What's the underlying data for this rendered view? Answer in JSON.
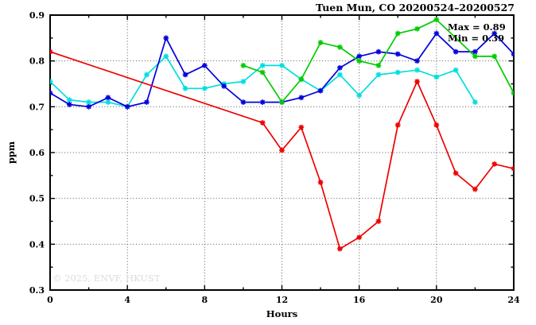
{
  "title": "Tuen Mun, CO 20200524–20200527",
  "watermark": "© 2025, ENVF, HKUST",
  "annotation": {
    "max_label": "Max = 0.89",
    "min_label": "Min = 0.39"
  },
  "chart_data": {
    "type": "line",
    "title": "Tuen Mun, CO 20200524–20200527",
    "xlabel": "Hours",
    "ylabel": "ppm",
    "xlim": [
      0,
      24
    ],
    "ylim": [
      0.3,
      0.9
    ],
    "x_major_ticks": [
      0,
      4,
      8,
      12,
      16,
      20,
      24
    ],
    "x_minor_ticks": [
      2,
      6,
      10,
      14,
      18,
      22
    ],
    "y_major_ticks": [
      0.3,
      0.4,
      0.5,
      0.6,
      0.7,
      0.8,
      0.9
    ],
    "y_minor_ticks": [
      0.35,
      0.45,
      0.55,
      0.65,
      0.75,
      0.85
    ],
    "grid": "dotted-at-major-ticks",
    "grid_color": "#555555",
    "legend": "none",
    "marker": "asterisk",
    "annotations": [
      "Max = 0.89",
      "Min = 0.39"
    ],
    "note": "points are [hour, ppm, marker?]; third element 0 = line passes through but no marker drawn (missing sample interpolated)",
    "series": [
      {
        "name": "series-cyan",
        "color": "#00dede",
        "points": [
          [
            0,
            0.755
          ],
          [
            1,
            0.715
          ],
          [
            2,
            0.71
          ],
          [
            3,
            0.71
          ],
          [
            4,
            0.7
          ],
          [
            5,
            0.77
          ],
          [
            6,
            0.81
          ],
          [
            7,
            0.74
          ],
          [
            8,
            0.74
          ],
          [
            9,
            0.75
          ],
          [
            10,
            0.755
          ],
          [
            11,
            0.79
          ],
          [
            12,
            0.79
          ],
          [
            13,
            0.76
          ],
          [
            14,
            0.735
          ],
          [
            15,
            0.77
          ],
          [
            16,
            0.725
          ],
          [
            17,
            0.77
          ],
          [
            18,
            0.775
          ],
          [
            19,
            0.78
          ],
          [
            20,
            0.765
          ],
          [
            21,
            0.78
          ],
          [
            22,
            0.71
          ]
        ]
      },
      {
        "name": "series-blue",
        "color": "#0000dd",
        "points": [
          [
            0,
            0.73
          ],
          [
            1,
            0.705
          ],
          [
            2,
            0.7
          ],
          [
            3,
            0.72
          ],
          [
            4,
            0.7
          ],
          [
            5,
            0.71
          ],
          [
            6,
            0.85
          ],
          [
            7,
            0.77
          ],
          [
            8,
            0.79
          ],
          [
            9,
            0.745
          ],
          [
            10,
            0.71
          ],
          [
            11,
            0.71
          ],
          [
            12,
            0.71
          ],
          [
            13,
            0.72
          ],
          [
            14,
            0.735
          ],
          [
            15,
            0.785
          ],
          [
            16,
            0.81
          ],
          [
            17,
            0.82
          ],
          [
            18,
            0.815
          ],
          [
            19,
            0.8
          ],
          [
            20,
            0.86
          ],
          [
            21,
            0.82
          ],
          [
            22,
            0.82
          ],
          [
            23,
            0.86
          ],
          [
            24,
            0.815
          ]
        ]
      },
      {
        "name": "series-green",
        "color": "#00cc00",
        "points": [
          [
            10,
            0.79
          ],
          [
            11,
            0.775
          ],
          [
            12,
            0.71
          ],
          [
            13,
            0.76
          ],
          [
            14,
            0.84
          ],
          [
            15,
            0.83
          ],
          [
            16,
            0.8
          ],
          [
            17,
            0.79
          ],
          [
            18,
            0.86
          ],
          [
            19,
            0.87
          ],
          [
            20,
            0.89
          ],
          [
            21,
            0.85,
            0
          ],
          [
            22,
            0.81
          ],
          [
            23,
            0.81
          ],
          [
            24,
            0.73
          ]
        ]
      },
      {
        "name": "series-red",
        "color": "#ee0000",
        "points": [
          [
            0,
            0.82
          ],
          [
            11,
            0.665
          ],
          [
            12,
            0.605
          ],
          [
            13,
            0.655
          ],
          [
            14,
            0.535
          ],
          [
            15,
            0.39
          ],
          [
            16,
            0.415
          ],
          [
            17,
            0.45
          ],
          [
            18,
            0.66
          ],
          [
            19,
            0.755
          ],
          [
            20,
            0.66
          ],
          [
            21,
            0.555
          ],
          [
            22,
            0.52
          ],
          [
            23,
            0.575
          ],
          [
            24,
            0.565
          ]
        ]
      }
    ]
  }
}
